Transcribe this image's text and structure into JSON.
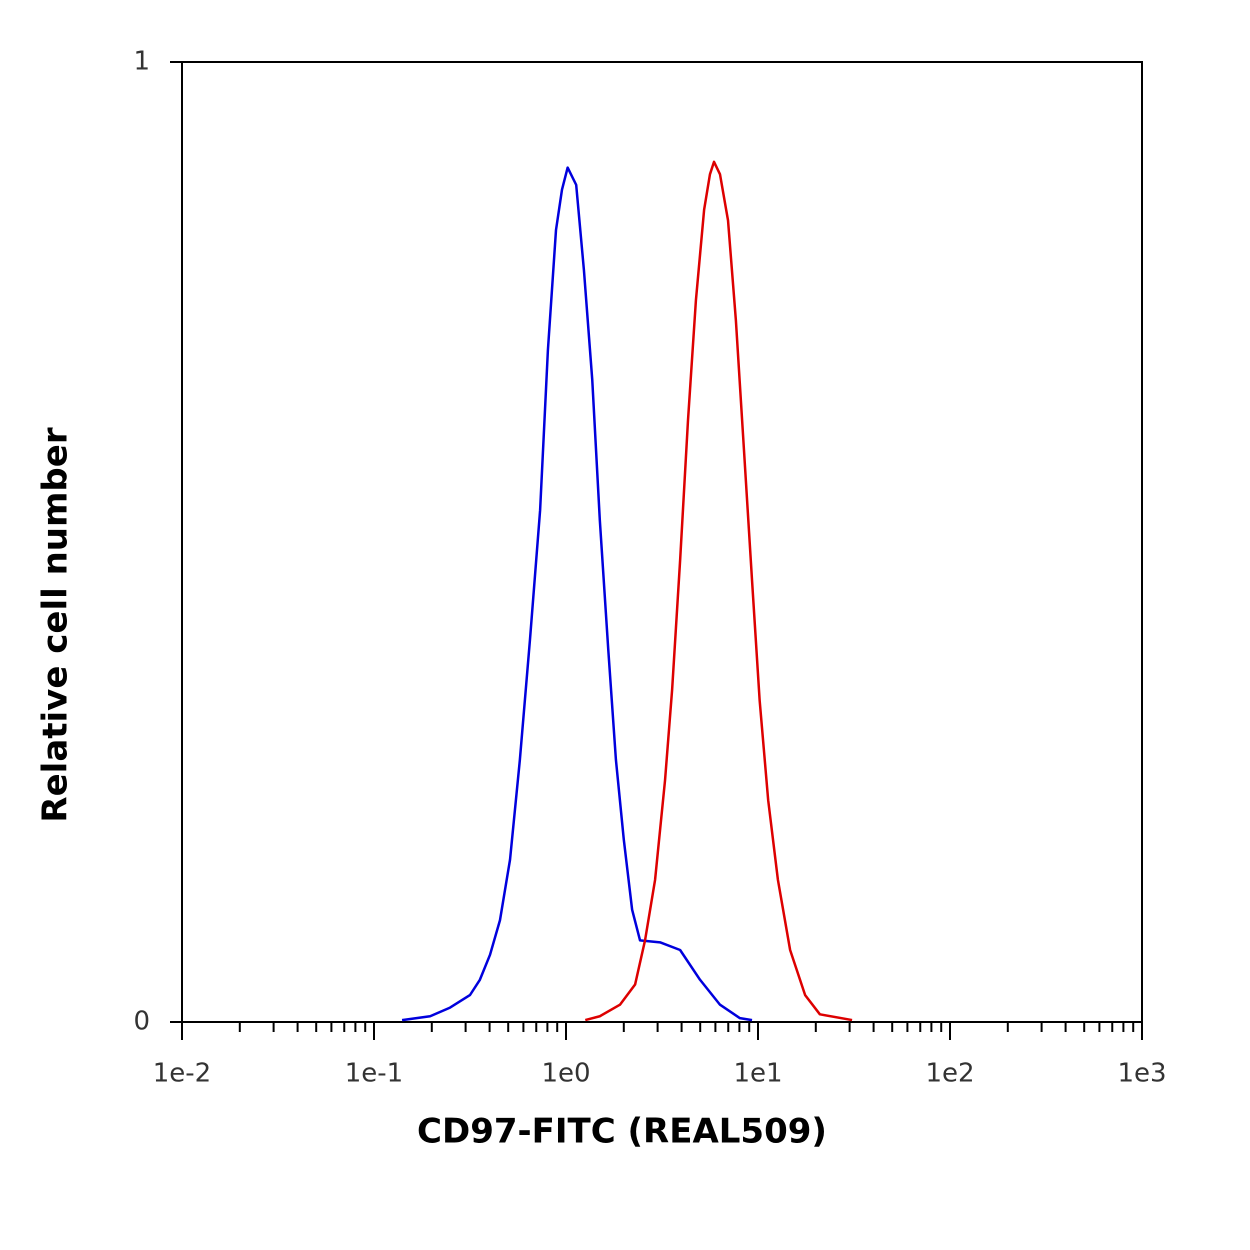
{
  "chart_data": {
    "type": "line",
    "x_label": "CD97-FITC (REAL509)",
    "y_label": "Relative cell number",
    "xscale": "log",
    "xlim": [
      0.01,
      1000
    ],
    "xticks": [
      {
        "value": 0.01,
        "label": "1e-2"
      },
      {
        "value": 0.1,
        "label": "1e-1"
      },
      {
        "value": 1,
        "label": "1e0"
      },
      {
        "value": 10,
        "label": "1e1"
      },
      {
        "value": 100,
        "label": "1e2"
      },
      {
        "value": 1000,
        "label": "1e3"
      }
    ],
    "ylim": [
      0,
      1
    ],
    "yticks": [
      0,
      1
    ],
    "series": [
      {
        "color": "#0000dd",
        "x": [
          0.14,
          0.196,
          0.249,
          0.316,
          0.356,
          0.402,
          0.453,
          0.511,
          0.575,
          0.649,
          0.733,
          0.805,
          0.887,
          0.953,
          1.02,
          1.13,
          1.24,
          1.37,
          1.5,
          1.66,
          1.82,
          2.0,
          2.21,
          2.43,
          3.09,
          3.93,
          4.99,
          6.34,
          8.05,
          9.31
        ],
        "values": [
          0.002,
          0.006,
          0.015,
          0.028,
          0.044,
          0.07,
          0.106,
          0.169,
          0.273,
          0.398,
          0.533,
          0.7,
          0.825,
          0.867,
          0.89,
          0.872,
          0.783,
          0.669,
          0.523,
          0.388,
          0.273,
          0.19,
          0.117,
          0.085,
          0.083,
          0.075,
          0.044,
          0.018,
          0.004,
          0.002
        ]
      },
      {
        "color": "#dd0000",
        "x": [
          1.26,
          1.5,
          1.91,
          2.29,
          2.58,
          2.91,
          3.28,
          3.57,
          3.93,
          4.32,
          4.75,
          5.24,
          5.62,
          5.9,
          6.34,
          6.98,
          7.67,
          8.45,
          9.31,
          10.2,
          11.3,
          12.7,
          14.7,
          17.6,
          21.0,
          30.9
        ],
        "values": [
          0.002,
          0.006,
          0.018,
          0.039,
          0.085,
          0.148,
          0.252,
          0.346,
          0.481,
          0.627,
          0.752,
          0.846,
          0.883,
          0.896,
          0.883,
          0.835,
          0.731,
          0.596,
          0.46,
          0.335,
          0.231,
          0.148,
          0.075,
          0.028,
          0.008,
          0.002
        ]
      }
    ]
  }
}
